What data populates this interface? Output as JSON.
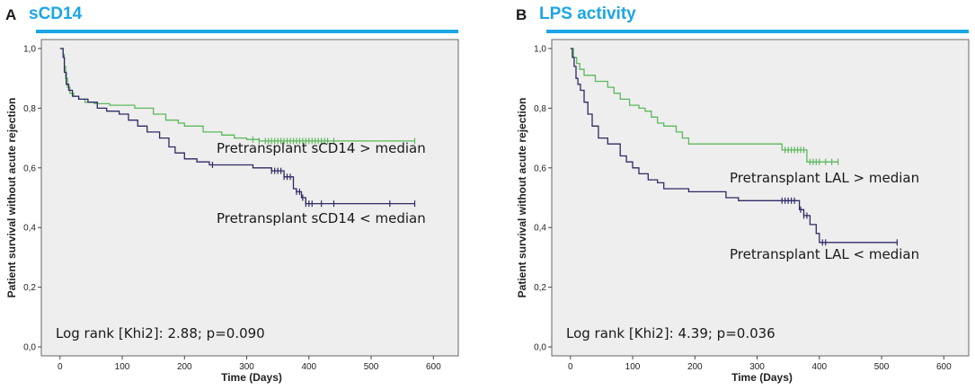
{
  "colors": {
    "accent": "#1ba6e6",
    "plot_bg": "#eeeeee",
    "green": "#5cb85c",
    "navy": "#2e2a66"
  },
  "chart_data": [
    {
      "panel": "A",
      "type": "line",
      "title": "sCD14",
      "xlabel": "Time (Days)",
      "ylabel": "Patient survival without acute rejection",
      "xlim": [
        -30,
        640
      ],
      "ylim": [
        -0.03,
        1.03
      ],
      "xticks": [
        0,
        100,
        200,
        300,
        400,
        500,
        600
      ],
      "yticks": [
        0.0,
        0.2,
        0.4,
        0.6,
        0.8,
        1.0
      ],
      "ytick_labels": [
        "0,0",
        "0,2",
        "0,4",
        "0,6",
        "0,8",
        "1,0"
      ],
      "grid": false,
      "annotation": "Log rank [Khi2]: 2.88; p=0.090",
      "series": [
        {
          "name": "Pretransplant  sCD14 > median",
          "color": "#5cb85c",
          "steps": [
            [
              0,
              1.0
            ],
            [
              5,
              0.98
            ],
            [
              7,
              0.94
            ],
            [
              9,
              0.9
            ],
            [
              12,
              0.87
            ],
            [
              16,
              0.85
            ],
            [
              22,
              0.84
            ],
            [
              30,
              0.83
            ],
            [
              40,
              0.82
            ],
            [
              55,
              0.815
            ],
            [
              80,
              0.81
            ],
            [
              120,
              0.8
            ],
            [
              150,
              0.78
            ],
            [
              170,
              0.76
            ],
            [
              190,
              0.75
            ],
            [
              200,
              0.74
            ],
            [
              230,
              0.72
            ],
            [
              260,
              0.71
            ],
            [
              280,
              0.7
            ],
            [
              300,
              0.695
            ],
            [
              320,
              0.69
            ],
            [
              570,
              0.69
            ]
          ],
          "censor_x": [
            310,
            320,
            330,
            335,
            340,
            345,
            350,
            355,
            360,
            365,
            370,
            375,
            380,
            385,
            390,
            395,
            400,
            405,
            410,
            415,
            420,
            425,
            430,
            440,
            570
          ]
        },
        {
          "name": "Pretransplant  sCD14 < median",
          "color": "#2e2a66",
          "steps": [
            [
              0,
              1.0
            ],
            [
              5,
              0.97
            ],
            [
              7,
              0.92
            ],
            [
              10,
              0.88
            ],
            [
              14,
              0.86
            ],
            [
              20,
              0.84
            ],
            [
              30,
              0.83
            ],
            [
              45,
              0.82
            ],
            [
              60,
              0.8
            ],
            [
              75,
              0.79
            ],
            [
              95,
              0.78
            ],
            [
              110,
              0.76
            ],
            [
              125,
              0.74
            ],
            [
              140,
              0.72
            ],
            [
              160,
              0.7
            ],
            [
              175,
              0.67
            ],
            [
              185,
              0.65
            ],
            [
              200,
              0.63
            ],
            [
              220,
              0.62
            ],
            [
              240,
              0.61
            ],
            [
              290,
              0.61
            ],
            [
              310,
              0.6
            ],
            [
              340,
              0.59
            ],
            [
              360,
              0.57
            ],
            [
              375,
              0.53
            ],
            [
              380,
              0.52
            ],
            [
              388,
              0.5
            ],
            [
              395,
              0.48
            ],
            [
              570,
              0.48
            ]
          ],
          "censor_x": [
            245,
            340,
            345,
            350,
            355,
            360,
            365,
            370,
            380,
            385,
            390,
            395,
            400,
            405,
            420,
            440,
            530,
            570
          ]
        }
      ],
      "series_labels": [
        "Pretransplant  sCD14 > median",
        "Pretransplant  sCD14 < median"
      ]
    },
    {
      "panel": "B",
      "type": "line",
      "title": "LPS activity",
      "xlabel": "Time (Days)",
      "ylabel": "Patient survival without acute rejection",
      "xlim": [
        -30,
        640
      ],
      "ylim": [
        -0.03,
        1.03
      ],
      "xticks": [
        0,
        100,
        200,
        300,
        400,
        500,
        600
      ],
      "yticks": [
        0.0,
        0.2,
        0.4,
        0.6,
        0.8,
        1.0
      ],
      "ytick_labels": [
        "0,0",
        "0,2",
        "0,4",
        "0,6",
        "0,8",
        "1,0"
      ],
      "grid": false,
      "annotation": "Log rank [Khi2]: 4.39; p=0.036",
      "series": [
        {
          "name": "Pretransplant  LAL > median",
          "color": "#5cb85c",
          "steps": [
            [
              0,
              1.0
            ],
            [
              5,
              0.97
            ],
            [
              10,
              0.95
            ],
            [
              15,
              0.93
            ],
            [
              22,
              0.91
            ],
            [
              40,
              0.89
            ],
            [
              60,
              0.87
            ],
            [
              70,
              0.85
            ],
            [
              80,
              0.83
            ],
            [
              95,
              0.81
            ],
            [
              110,
              0.8
            ],
            [
              120,
              0.79
            ],
            [
              130,
              0.77
            ],
            [
              140,
              0.75
            ],
            [
              150,
              0.74
            ],
            [
              170,
              0.72
            ],
            [
              180,
              0.7
            ],
            [
              190,
              0.68
            ],
            [
              300,
              0.68
            ],
            [
              340,
              0.66
            ],
            [
              370,
              0.66
            ],
            [
              380,
              0.62
            ],
            [
              430,
              0.62
            ]
          ],
          "censor_x": [
            345,
            350,
            355,
            360,
            365,
            370,
            375,
            385,
            390,
            395,
            400,
            410,
            420,
            430
          ]
        },
        {
          "name": "Pretransplant  LAL < median",
          "color": "#2e2a66",
          "steps": [
            [
              0,
              1.0
            ],
            [
              3,
              0.97
            ],
            [
              6,
              0.94
            ],
            [
              9,
              0.9
            ],
            [
              12,
              0.88
            ],
            [
              16,
              0.86
            ],
            [
              22,
              0.82
            ],
            [
              28,
              0.78
            ],
            [
              35,
              0.74
            ],
            [
              45,
              0.7
            ],
            [
              60,
              0.68
            ],
            [
              80,
              0.64
            ],
            [
              90,
              0.62
            ],
            [
              100,
              0.6
            ],
            [
              110,
              0.58
            ],
            [
              125,
              0.56
            ],
            [
              140,
              0.55
            ],
            [
              150,
              0.53
            ],
            [
              180,
              0.53
            ],
            [
              190,
              0.52
            ],
            [
              240,
              0.52
            ],
            [
              250,
              0.5
            ],
            [
              270,
              0.49
            ],
            [
              360,
              0.49
            ],
            [
              368,
              0.46
            ],
            [
              375,
              0.44
            ],
            [
              385,
              0.41
            ],
            [
              395,
              0.38
            ],
            [
              400,
              0.35
            ],
            [
              525,
              0.35
            ]
          ],
          "censor_x": [
            340,
            345,
            350,
            355,
            360,
            370,
            375,
            380,
            405,
            410,
            525
          ]
        }
      ],
      "series_labels": [
        "Pretransplant  LAL > median",
        "Pretransplant  LAL < median"
      ]
    }
  ]
}
